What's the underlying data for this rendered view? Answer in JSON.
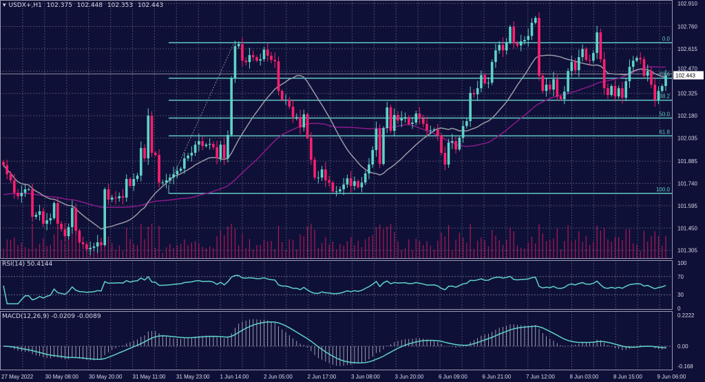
{
  "header": {
    "symbol": "USDX+,H1",
    "open": "102.375",
    "high": "102.448",
    "low": "102.353",
    "close": "102.443"
  },
  "rsi_label": "RSI(14) 50.4144",
  "macd_label": "MACD(12,26,9) -0.0209 -0.0089",
  "colors": {
    "background": "#0f1037",
    "bull": "#5fd3c8",
    "bear": "#ff1f6e",
    "fib": "#62c9c6",
    "ma_fast": "#9a9aa8",
    "ma_slow": "#8a1a8a",
    "volume": "#b0185a",
    "indicator": "#5fd3c8"
  },
  "chart_data": {
    "type": "candlestick",
    "symbol": "USDX+",
    "timeframe": "H1",
    "last_price": 102.443,
    "price_ticks": [
      "102.910",
      "102.760",
      "102.615",
      "102.470",
      "102.325",
      "102.180",
      "102.035",
      "101.885",
      "101.740",
      "101.595",
      "101.450",
      "101.305"
    ],
    "ylim": [
      101.25,
      102.93
    ],
    "time_ticks": [
      "27 May 2022",
      "30 May 08:00",
      "30 May 20:00",
      "31 May 11:00",
      "31 May 23:00",
      "1 Jun 14:00",
      "2 Jun 05:00",
      "2 Jun 17:00",
      "3 Jun 08:00",
      "3 Jun 20:00",
      "6 Jun 09:00",
      "6 Jun 21:00",
      "7 Jun 12:00",
      "8 Jun 03:00",
      "8 Jun 15:00",
      "9 Jun 06:00"
    ],
    "first_open": 101.88,
    "closes": [
      101.858,
      101.8,
      101.76,
      101.679,
      101.657,
      101.679,
      101.702,
      101.702,
      101.523,
      101.536,
      101.559,
      101.478,
      101.5,
      101.514,
      101.612,
      101.478,
      101.442,
      101.397,
      101.456,
      101.581,
      101.433,
      101.357,
      101.344,
      101.312,
      101.321,
      101.33,
      101.357,
      101.339,
      101.702,
      101.635,
      101.648,
      101.643,
      101.657,
      101.648,
      101.769,
      101.724,
      101.769,
      101.791,
      101.97,
      101.903,
      102.18,
      101.939,
      101.925,
      101.746,
      101.746,
      101.76,
      101.778,
      101.8,
      101.822,
      101.836,
      101.903,
      101.921,
      101.939,
      101.992,
      102.015,
      101.983,
      101.992,
      101.997,
      101.975,
      101.903,
      101.992,
      101.903,
      102.055,
      102.426,
      102.632,
      102.646,
      102.538,
      102.529,
      102.574,
      102.561,
      102.538,
      102.547,
      102.61,
      102.57,
      102.543,
      102.534,
      102.341,
      102.283,
      102.283,
      102.239,
      102.171,
      102.171,
      102.104,
      102.189,
      102.037,
      101.894,
      101.778,
      101.778,
      101.831,
      101.76,
      101.746,
      101.688,
      101.688,
      101.702,
      101.733,
      101.773,
      101.724,
      101.755,
      101.715,
      101.746,
      101.805,
      101.863,
      101.957,
      102.095,
      101.867,
      102.1,
      102.234,
      102.082,
      102.185,
      102.149,
      102.162,
      102.171,
      102.127,
      102.136,
      102.194,
      102.162,
      102.127,
      102.086,
      102.086,
      102.091,
      102.051,
      101.939,
      101.863,
      102.006,
      102.015,
      101.961,
      102.037,
      102.113,
      102.145,
      102.328,
      102.319,
      102.359,
      102.444,
      102.391,
      102.395,
      102.529,
      102.605,
      102.641,
      102.605,
      102.655,
      102.758,
      102.65,
      102.637,
      102.664,
      102.673,
      102.699,
      102.784,
      102.816,
      102.44,
      102.341,
      102.382,
      102.35,
      102.417,
      102.306,
      102.288,
      102.337,
      102.471,
      102.529,
      102.476,
      102.561,
      102.614,
      102.543,
      102.538,
      102.588,
      102.722,
      102.547,
      102.359,
      102.315,
      102.373,
      102.306,
      102.359,
      102.297,
      102.404,
      102.498,
      102.538,
      102.556,
      102.547,
      102.44,
      102.471,
      102.382,
      102.283,
      102.341,
      102.373,
      102.443
    ],
    "fibonacci": {
      "levels": [
        {
          "label": "0.0",
          "price": 102.655
        },
        {
          "label": "23.6",
          "price": 102.424
        },
        {
          "label": "38.2",
          "price": 102.281
        },
        {
          "label": "50.0",
          "price": 102.165
        },
        {
          "label": "61.8",
          "price": 102.049
        },
        {
          "label": "100.0",
          "price": 101.675
        }
      ]
    },
    "indicators": {
      "ma_fast": "gray moving average",
      "ma_slow": "purple moving average",
      "rsi": {
        "period": 14,
        "value": 50.4144,
        "levels": [
          100,
          70,
          30,
          0
        ],
        "ylim": [
          0,
          100
        ]
      },
      "macd": {
        "fast": 12,
        "slow": 26,
        "signal": 9,
        "value": -0.0209,
        "signal_value": -0.0089,
        "ticks": [
          "0.2222",
          "0.00",
          "-0.168"
        ],
        "ylim": [
          -0.168,
          0.2222
        ]
      }
    },
    "grid": true
  }
}
